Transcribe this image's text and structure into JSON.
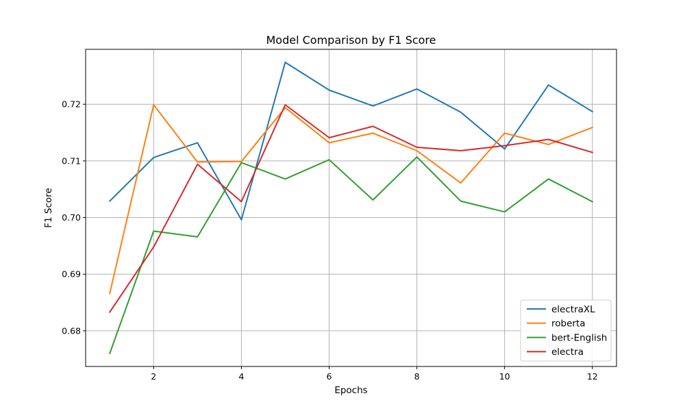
{
  "chart_data": {
    "type": "line",
    "title": "Model Comparison by F1 Score",
    "xlabel": "Epochs",
    "ylabel": "F1 Score",
    "xlim": [
      0.45,
      12.55
    ],
    "ylim": [
      0.6737,
      0.7297
    ],
    "xticks": [
      2,
      4,
      6,
      8,
      10,
      12
    ],
    "xtick_labels": [
      "2",
      "4",
      "6",
      "8",
      "10",
      "12"
    ],
    "yticks": [
      0.68,
      0.69,
      0.7,
      0.71,
      0.72
    ],
    "ytick_labels": [
      "0.68",
      "0.69",
      "0.70",
      "0.71",
      "0.72"
    ],
    "grid": true,
    "legend_position": "lower-right",
    "x": [
      1,
      2,
      3,
      4,
      5,
      6,
      7,
      8,
      9,
      10,
      11,
      12
    ],
    "series": [
      {
        "name": "electraXL",
        "color": "#1f77b4",
        "values": [
          0.7029,
          0.7106,
          0.7132,
          0.6996,
          0.7274,
          0.7225,
          0.7197,
          0.7227,
          0.7186,
          0.7121,
          0.7234,
          0.7187
        ]
      },
      {
        "name": "roberta",
        "color": "#ff7f0e",
        "values": [
          0.6866,
          0.7199,
          0.7098,
          0.7099,
          0.7194,
          0.7132,
          0.7149,
          0.7118,
          0.7061,
          0.7149,
          0.7129,
          0.7159
        ]
      },
      {
        "name": "bert-English",
        "color": "#2ca02c",
        "values": [
          0.676,
          0.6976,
          0.6966,
          0.7097,
          0.7068,
          0.7102,
          0.7031,
          0.7107,
          0.7029,
          0.701,
          0.7068,
          0.7028
        ]
      },
      {
        "name": "electra",
        "color": "#d62728",
        "values": [
          0.6833,
          0.6948,
          0.7094,
          0.7028,
          0.7199,
          0.7141,
          0.7161,
          0.7124,
          0.7118,
          0.7127,
          0.7138,
          0.7115
        ]
      }
    ]
  }
}
